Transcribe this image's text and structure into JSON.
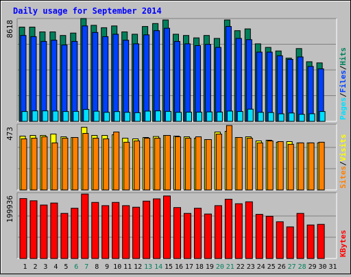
{
  "title": "Daily usage for September 2014",
  "colors": {
    "hits": "#00805C",
    "files": "#0040FF",
    "pages": "#00E0FF",
    "visits": "#FFFF00",
    "sites": "#FF8000",
    "kbytes": "#FF0000",
    "weekend_label": "#00805C",
    "title": "#0000FF",
    "border": "#000000",
    "panel_bg": "#C0C0C0"
  },
  "chart_data": [
    {
      "type": "bar",
      "panel": "top",
      "scale_max_label": "8618",
      "legend": [
        {
          "label": "Pages",
          "color": "#00E0FF"
        },
        {
          "label": "/",
          "color": "#000000"
        },
        {
          "label": "Files",
          "color": "#0040FF"
        },
        {
          "label": "/",
          "color": "#000000"
        },
        {
          "label": "Hits",
          "color": "#00805C"
        }
      ],
      "ylim": [
        0,
        8618
      ],
      "categories": [
        "1",
        "2",
        "3",
        "4",
        "5",
        "6",
        "7",
        "8",
        "9",
        "10",
        "11",
        "12",
        "13",
        "14",
        "15",
        "16",
        "17",
        "18",
        "19",
        "20",
        "21",
        "22",
        "23",
        "24",
        "25",
        "26",
        "27",
        "28",
        "29",
        "30"
      ],
      "series": [
        {
          "name": "Hits",
          "color": "#00805C",
          "values": [
            7900,
            7900,
            7500,
            7500,
            7200,
            7400,
            8618,
            8050,
            7850,
            8000,
            7500,
            7300,
            7950,
            8200,
            8500,
            7300,
            7200,
            7000,
            7200,
            6950,
            8500,
            7600,
            7750,
            6500,
            6200,
            5900,
            5300,
            6100,
            5000,
            4900
          ]
        },
        {
          "name": "Files",
          "color": "#0040FF",
          "values": [
            7200,
            7100,
            6700,
            6800,
            6400,
            6700,
            8000,
            7450,
            7100,
            7300,
            6800,
            6500,
            7250,
            7600,
            7800,
            6700,
            6500,
            6350,
            6450,
            6200,
            7950,
            6950,
            6850,
            5800,
            5800,
            5500,
            5200,
            5400,
            4600,
            4400
          ]
        },
        {
          "name": "Pages",
          "color": "#00E0FF",
          "values": [
            830,
            880,
            880,
            860,
            830,
            840,
            1000,
            850,
            760,
            820,
            760,
            730,
            860,
            880,
            840,
            760,
            770,
            770,
            790,
            780,
            860,
            830,
            1020,
            760,
            740,
            630,
            700,
            590,
            640,
            830
          ]
        }
      ]
    },
    {
      "type": "bar",
      "panel": "middle",
      "scale_max_label": "473",
      "legend": [
        {
          "label": "Sites",
          "color": "#FF8000"
        },
        {
          "label": "/",
          "color": "#000000"
        },
        {
          "label": "Visits",
          "color": "#FFFF00"
        }
      ],
      "ylim": [
        0,
        473
      ],
      "categories": [
        "1",
        "2",
        "3",
        "4",
        "5",
        "6",
        "7",
        "8",
        "9",
        "10",
        "11",
        "12",
        "13",
        "14",
        "15",
        "16",
        "17",
        "18",
        "19",
        "20",
        "21",
        "22",
        "23",
        "24",
        "25",
        "26",
        "27",
        "28",
        "29",
        "30"
      ],
      "series": [
        {
          "name": "Visits",
          "color": "#FFFF00",
          "values": [
            395,
            400,
            400,
            410,
            390,
            385,
            460,
            400,
            400,
            405,
            380,
            375,
            385,
            392,
            400,
            395,
            390,
            380,
            370,
            425,
            430,
            385,
            390,
            360,
            365,
            350,
            355,
            345,
            345,
            345
          ]
        },
        {
          "name": "Sites",
          "color": "#FF8000",
          "values": [
            375,
            380,
            390,
            345,
            380,
            385,
            415,
            380,
            375,
            425,
            350,
            360,
            380,
            380,
            400,
            390,
            380,
            390,
            370,
            410,
            473,
            385,
            380,
            345,
            360,
            355,
            335,
            345,
            345,
            350
          ]
        }
      ]
    },
    {
      "type": "bar",
      "panel": "bottom",
      "scale_max_label": "199936",
      "legend": [
        {
          "label": "KBytes",
          "color": "#FF0000"
        }
      ],
      "ylim": [
        0,
        199936
      ],
      "categories": [
        "1",
        "2",
        "3",
        "4",
        "5",
        "6",
        "7",
        "8",
        "9",
        "10",
        "11",
        "12",
        "13",
        "14",
        "15",
        "16",
        "17",
        "18",
        "19",
        "20",
        "21",
        "22",
        "23",
        "24",
        "25",
        "26",
        "27",
        "28",
        "29",
        "30"
      ],
      "series": [
        {
          "name": "KBytes",
          "color": "#FF0000",
          "values": [
            186000,
            179000,
            166000,
            172000,
            140000,
            156000,
            199936,
            174000,
            164000,
            174000,
            164000,
            159000,
            178000,
            185000,
            194000,
            158000,
            140000,
            156000,
            138000,
            164000,
            184000,
            170000,
            176000,
            137000,
            131000,
            114000,
            98000,
            140000,
            104000,
            106000
          ]
        }
      ]
    }
  ],
  "x_axis": {
    "days": [
      "1",
      "2",
      "3",
      "4",
      "5",
      "6",
      "7",
      "8",
      "9",
      "10",
      "11",
      "12",
      "13",
      "14",
      "15",
      "16",
      "17",
      "18",
      "19",
      "20",
      "21",
      "22",
      "23",
      "24",
      "25",
      "26",
      "27",
      "28",
      "29",
      "30",
      "31"
    ],
    "weekend_days": [
      "6",
      "7",
      "13",
      "14",
      "20",
      "21",
      "27",
      "28"
    ]
  }
}
